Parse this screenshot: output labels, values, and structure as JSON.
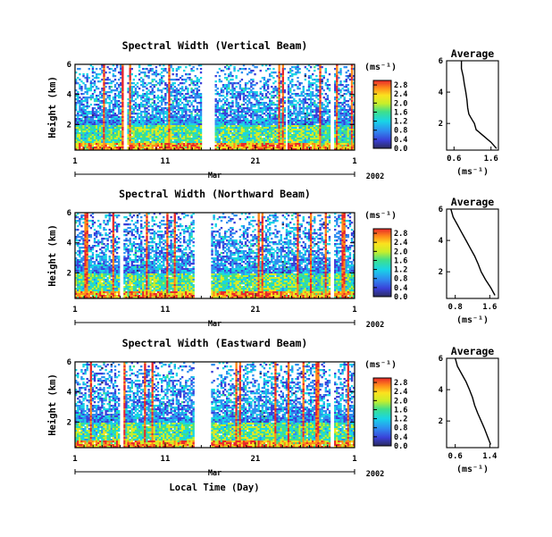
{
  "figure": {
    "xlabel": "Local Time (Day)",
    "month_label": "Mar",
    "year_label": "2002",
    "x_ticks": [
      "1",
      "11",
      "21",
      "1"
    ],
    "ylabel": "Height (km)",
    "y_ticks": [
      "6",
      "4",
      "2"
    ],
    "colorbar_unit": "(ms⁻¹)",
    "colorbar_ticks": [
      "2.8",
      "2.4",
      "2.0",
      "1.6",
      "1.2",
      "0.8",
      "0.4",
      "0.0"
    ],
    "average_title": "Average",
    "average_xlabel": "(ms⁻¹)",
    "average_y_ticks": [
      "6",
      "4",
      "2"
    ]
  },
  "chart_data": [
    {
      "type": "heatmap",
      "title": "Spectral Width (Vertical Beam)",
      "xlabel": "",
      "ylabel": "Height (km)",
      "x_range_days": [
        1,
        32
      ],
      "ylim_km": [
        0.3,
        6
      ],
      "colorbar_range": [
        0.0,
        2.8
      ],
      "gaps_days": [
        [
          6.4,
          6.8
        ],
        [
          15.0,
          16.6
        ],
        [
          24.4,
          24.6
        ],
        [
          29.3,
          29.8
        ]
      ]
    },
    {
      "type": "line",
      "title": "Average",
      "xlabel": "(ms⁻¹)",
      "x_ticks": [
        "0.6",
        "1.6"
      ],
      "xlim": [
        0.4,
        1.8
      ],
      "ylim": [
        0.3,
        6
      ],
      "x": [
        0.8,
        0.8,
        0.85,
        0.88,
        0.92,
        0.95,
        0.97,
        1.0,
        1.05,
        1.1,
        1.15,
        1.2,
        1.25,
        1.3,
        1.4,
        1.6,
        1.75
      ],
      "y": [
        6.0,
        5.5,
        5.0,
        4.5,
        4.0,
        3.5,
        3.0,
        2.6,
        2.4,
        2.2,
        2.0,
        1.6,
        1.5,
        1.4,
        1.2,
        0.8,
        0.4
      ]
    },
    {
      "type": "heatmap",
      "title": "Spectral Width (Northward Beam)",
      "xlabel": "",
      "ylabel": "Height (km)",
      "x_range_days": [
        1,
        32
      ],
      "ylim_km": [
        0.3,
        6
      ],
      "colorbar_range": [
        0.0,
        2.8
      ],
      "gaps_days": [
        [
          6.0,
          6.4
        ],
        [
          14.3,
          16.0
        ],
        [
          29.3,
          29.8
        ]
      ]
    },
    {
      "type": "line",
      "title": "Average",
      "xlabel": "(ms⁻¹)",
      "x_ticks": [
        "0.8",
        "1.6"
      ],
      "xlim": [
        0.6,
        1.8
      ],
      "ylim": [
        0.3,
        6
      ],
      "x": [
        0.7,
        0.75,
        0.85,
        0.95,
        1.05,
        1.15,
        1.25,
        1.33,
        1.4,
        1.5,
        1.62,
        1.72
      ],
      "y": [
        6.0,
        5.5,
        5.0,
        4.5,
        4.0,
        3.5,
        3.0,
        2.5,
        2.0,
        1.5,
        1.0,
        0.5
      ]
    },
    {
      "type": "heatmap",
      "title": "Spectral Width (Eastward Beam)",
      "xlabel": "Local Time (Day)",
      "ylabel": "Height (km)",
      "x_range_days": [
        1,
        32
      ],
      "ylim_km": [
        0.3,
        6
      ],
      "colorbar_range": [
        0.0,
        2.8
      ],
      "gaps_days": [
        [
          6.0,
          6.4
        ],
        [
          14.3,
          16.0
        ],
        [
          29.3,
          29.8
        ]
      ]
    },
    {
      "type": "line",
      "title": "Average",
      "xlabel": "(ms⁻¹)",
      "x_ticks": [
        "0.6",
        "1.4"
      ],
      "xlim": [
        0.4,
        1.6
      ],
      "ylim": [
        0.3,
        6
      ],
      "x": [
        0.6,
        0.65,
        0.75,
        0.85,
        0.93,
        1.0,
        1.05,
        1.12,
        1.2,
        1.28,
        1.35,
        1.42
      ],
      "y": [
        6.0,
        5.5,
        5.0,
        4.5,
        4.0,
        3.5,
        3.0,
        2.5,
        2.0,
        1.5,
        1.0,
        0.5
      ]
    }
  ]
}
